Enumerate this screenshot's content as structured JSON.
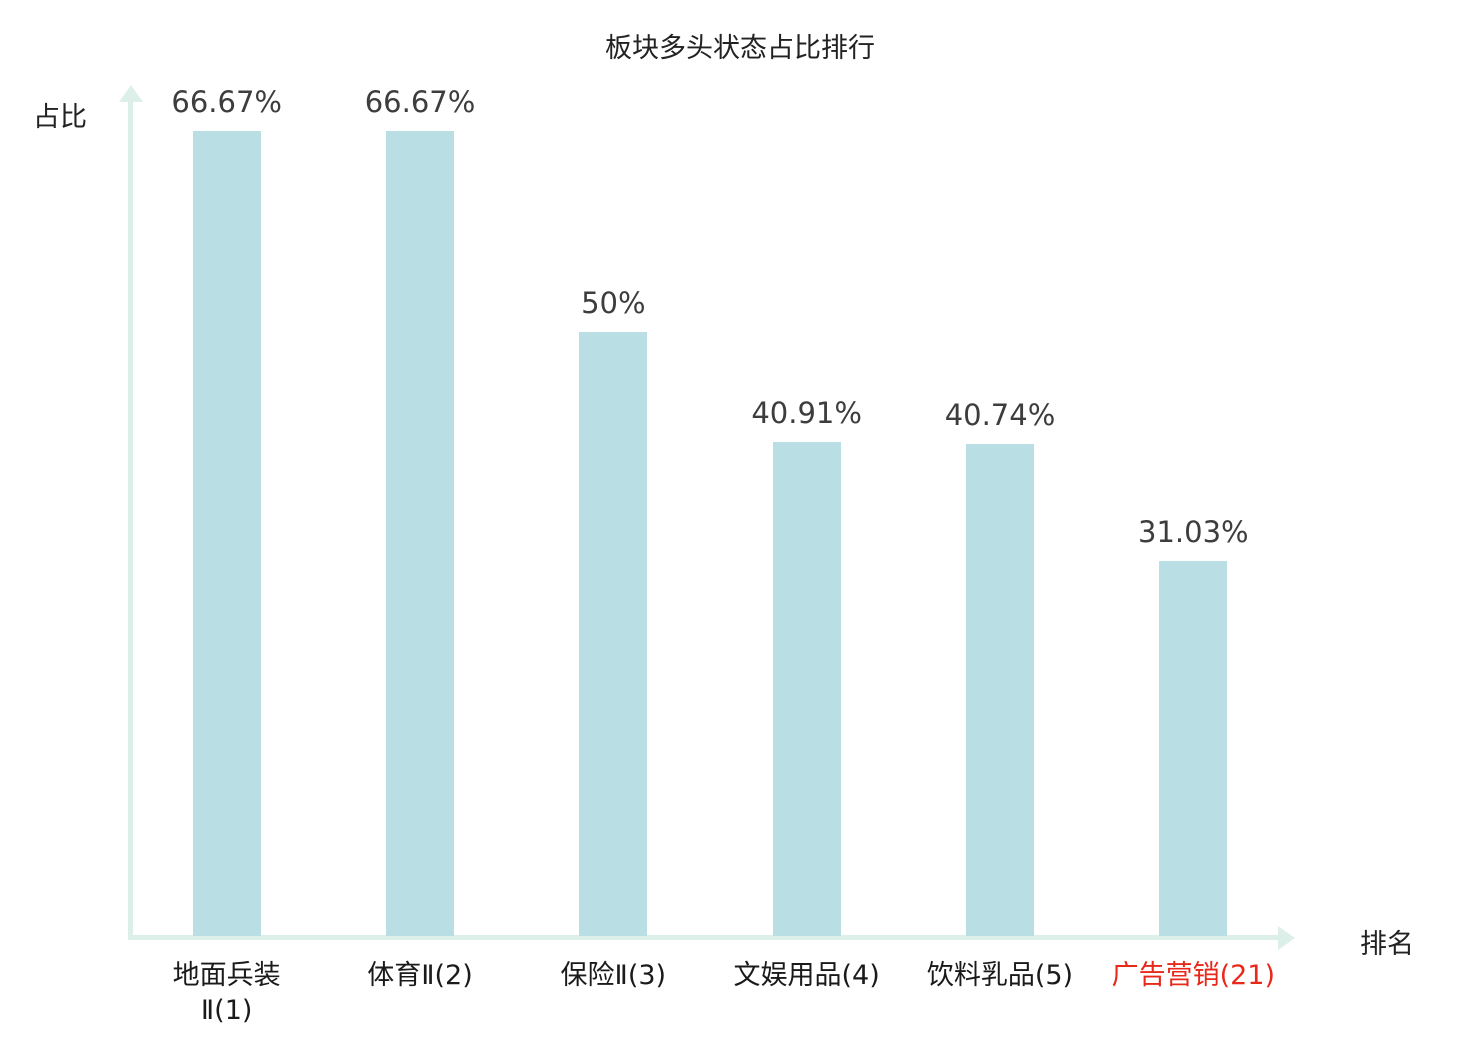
{
  "chart_data": {
    "type": "bar",
    "title": "板块多头状态占比排行",
    "ylabel": "占比",
    "xlabel": "排名",
    "categories": [
      "地面兵装\nⅡ(1)",
      "体育Ⅱ(2)",
      "保险Ⅱ(3)",
      "文娱用品(4)",
      "饮料乳品(5)",
      "广告营销(21)"
    ],
    "values": [
      66.67,
      66.67,
      50,
      40.91,
      40.74,
      31.03
    ],
    "value_labels": [
      "66.67%",
      "66.67%",
      "50%",
      "40.91%",
      "40.74%",
      "31.03%"
    ],
    "highlight_index": 5,
    "ylim": [
      0,
      70
    ],
    "grid": false,
    "legend": false,
    "colors": {
      "bar_fill": "#b9dfe4",
      "axis": "#ddefe9",
      "value_text": "#3d3d3d",
      "category_text": "#1a1a1a",
      "highlight": "#e8291a",
      "background": "#ffffff"
    }
  }
}
